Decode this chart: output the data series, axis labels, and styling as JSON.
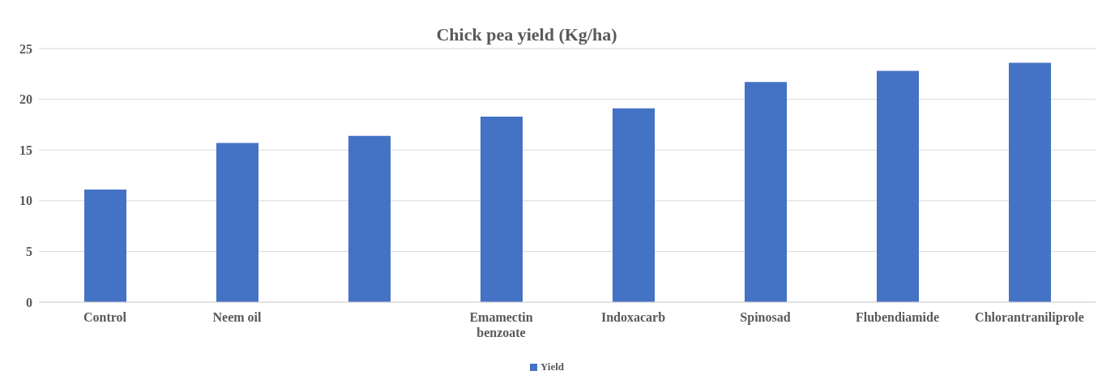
{
  "chart_data": {
    "type": "bar",
    "title": "Chick pea yield (Kg/ha)",
    "categories": [
      "Control",
      "Neem oil",
      null,
      "Emamectin benzoate",
      "Indoxacarb",
      "Spinosad",
      "Flubendiamide",
      "Chlorantraniliprole"
    ],
    "series": [
      {
        "name": "Yield",
        "color": "#4472c4",
        "values": [
          11.1,
          15.7,
          16.4,
          18.3,
          19.1,
          21.7,
          22.8,
          23.6
        ]
      }
    ],
    "ylim": [
      0,
      25
    ],
    "yticks": [
      0,
      5,
      10,
      15,
      20,
      25
    ],
    "grid": "y",
    "legend": "bottom"
  }
}
